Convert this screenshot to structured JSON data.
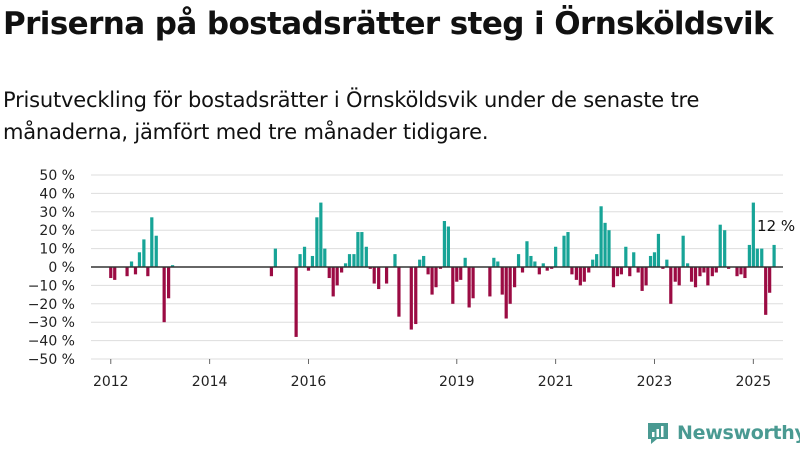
{
  "header": {
    "title": "Priserna på bostadsrätter steg i Örnsköldsvik",
    "subtitle": "Prisutveckling för bostadsrätter i Örnsköldsvik under de senaste tre månaderna, jämfört med tre månader tidigare."
  },
  "brand": {
    "name": "Newsworthy"
  },
  "colors": {
    "positive": "#17a497",
    "negative": "#9b0b43",
    "grid": "#dddddd",
    "zero": "#333333",
    "brand": "#4a9a92"
  },
  "chart_data": {
    "type": "bar",
    "title": "Priserna på bostadsrätter steg i Örnsköldsvik",
    "ylabel": "",
    "xlabel": "",
    "ylim": [
      -50,
      50
    ],
    "xlim": [
      2011.6,
      2025.6
    ],
    "yticks": [
      50,
      40,
      30,
      20,
      10,
      0,
      -10,
      -20,
      -30,
      -40,
      -50
    ],
    "ytick_labels": [
      "50 %",
      "40 %",
      "30 %",
      "20 %",
      "10 %",
      "0 %",
      "−10 %",
      "−20 %",
      "−30 %",
      "−40 %",
      "−50 %"
    ],
    "xticks": [
      2012,
      2014,
      2016,
      2019,
      2021,
      2023,
      2025
    ],
    "xtick_labels": [
      "2012",
      "2014",
      "2016",
      "2019",
      "2021",
      "2023",
      "2025"
    ],
    "annotation": {
      "text": "12 %",
      "x": 2025.42,
      "y": 12
    },
    "x": [
      2012.0,
      2012.08,
      2012.33,
      2012.42,
      2012.5,
      2012.58,
      2012.67,
      2012.75,
      2012.83,
      2012.92,
      2013.08,
      2013.17,
      2013.25,
      2015.25,
      2015.33,
      2015.75,
      2015.83,
      2015.92,
      2016.0,
      2016.08,
      2016.17,
      2016.25,
      2016.33,
      2016.42,
      2016.5,
      2016.58,
      2016.67,
      2016.75,
      2016.83,
      2016.92,
      2017.0,
      2017.08,
      2017.17,
      2017.25,
      2017.33,
      2017.42,
      2017.58,
      2017.75,
      2017.83,
      2018.08,
      2018.17,
      2018.25,
      2018.33,
      2018.42,
      2018.5,
      2018.58,
      2018.67,
      2018.75,
      2018.83,
      2018.92,
      2019.0,
      2019.08,
      2019.17,
      2019.25,
      2019.33,
      2019.67,
      2019.75,
      2019.83,
      2019.92,
      2020.0,
      2020.08,
      2020.17,
      2020.25,
      2020.33,
      2020.42,
      2020.5,
      2020.58,
      2020.67,
      2020.75,
      2020.83,
      2020.92,
      2021.0,
      2021.17,
      2021.25,
      2021.33,
      2021.42,
      2021.5,
      2021.58,
      2021.67,
      2021.75,
      2021.83,
      2021.92,
      2022.0,
      2022.08,
      2022.17,
      2022.25,
      2022.33,
      2022.42,
      2022.5,
      2022.58,
      2022.67,
      2022.75,
      2022.83,
      2022.92,
      2023.0,
      2023.08,
      2023.17,
      2023.25,
      2023.33,
      2023.42,
      2023.5,
      2023.58,
      2023.67,
      2023.75,
      2023.83,
      2023.92,
      2024.0,
      2024.08,
      2024.17,
      2024.25,
      2024.33,
      2024.42,
      2024.5,
      2024.58,
      2024.67,
      2024.75,
      2024.83,
      2024.92,
      2025.0,
      2025.08,
      2025.17,
      2025.25,
      2025.33,
      2025.42
    ],
    "values": [
      -6,
      -7,
      -5,
      3,
      -4,
      8,
      15,
      -5,
      27,
      17,
      -30,
      -17,
      1,
      -5,
      10,
      -38,
      7,
      11,
      -2,
      6,
      27,
      35,
      10,
      -6,
      -16,
      -10,
      -3,
      2,
      7,
      7,
      19,
      19,
      11,
      -1,
      -9,
      -12,
      -9,
      7,
      -27,
      -34,
      -31,
      4,
      6,
      -4,
      -15,
      -11,
      -1,
      25,
      22,
      -20,
      -8,
      -7,
      5,
      -22,
      -17,
      -16,
      5,
      3,
      -15,
      -28,
      -20,
      -11,
      7,
      -3,
      14,
      6,
      3,
      -4,
      2,
      -2,
      -1,
      11,
      17,
      19,
      -4,
      -7,
      -10,
      -8,
      -3,
      4,
      7,
      33,
      24,
      20,
      -11,
      -5,
      -4,
      11,
      -5,
      8,
      -3,
      -13,
      -10,
      6,
      8,
      18,
      -1,
      4,
      -20,
      -8,
      -10,
      17,
      2,
      -8,
      -11,
      -5,
      -3,
      -10,
      -5,
      -3,
      23,
      20,
      -1,
      0,
      -5,
      -4,
      -6,
      12,
      35,
      10,
      10,
      -26,
      -14,
      12
    ]
  }
}
